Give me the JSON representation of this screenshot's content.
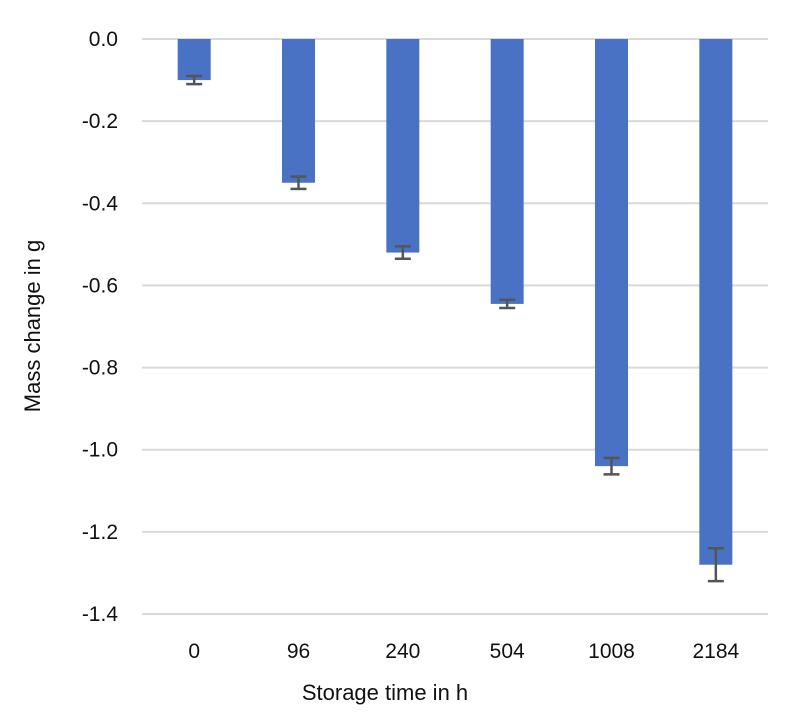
{
  "chart_data": {
    "type": "bar",
    "title": "",
    "xlabel": "Storage time in h",
    "ylabel": "Mass change in g",
    "categories": [
      "0",
      "96",
      "240",
      "504",
      "1008",
      "2184"
    ],
    "values": [
      -0.1,
      -0.35,
      -0.52,
      -0.645,
      -1.04,
      -1.28
    ],
    "error_bars": [
      0.01,
      0.015,
      0.015,
      0.01,
      0.02,
      0.04
    ],
    "ylim": [
      -1.4,
      0.0
    ],
    "y_ticks": [
      0.0,
      -0.2,
      -0.4,
      -0.6,
      -0.8,
      -1.0,
      -1.2,
      -1.4
    ],
    "y_tick_labels": [
      "0.0",
      "-0.2",
      "-0.4",
      "-0.6",
      "-0.8",
      "-1.0",
      "-1.2",
      "-1.4"
    ],
    "grid": true,
    "legend": "none",
    "colors": {
      "bar": "#4a72c4",
      "error_bar": "#555555",
      "grid": "#d9d9d9"
    }
  }
}
